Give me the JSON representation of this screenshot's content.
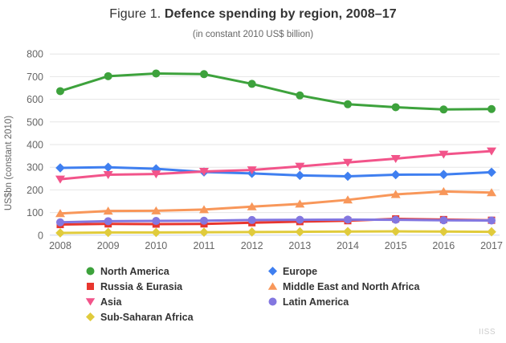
{
  "title": {
    "prefix": "Figure 1.",
    "main": "Defence spending by region, 2008–17"
  },
  "subtitle": "(in constant 2010 US$ billion)",
  "watermark": "IISS",
  "colors": {
    "gridline": "#e6e6e6",
    "axis_line": "#ccd6eb",
    "tick": "#ccd6eb",
    "axis_label": "#666666",
    "title_text": "#333333",
    "legend_text": "#333333"
  },
  "chart_data": {
    "type": "line",
    "title": "Figure 1. Defence spending by region, 2008-17",
    "subtitle": "(in constant 2010 US$ billion)",
    "xlabel": "",
    "ylabel": "US$bn (constant 2010)",
    "ylim": [
      0,
      800
    ],
    "yticks": [
      0,
      100,
      200,
      300,
      400,
      500,
      600,
      700,
      800
    ],
    "grid": "horizontal",
    "legend_position": "bottom",
    "categories": [
      "2008",
      "2009",
      "2010",
      "2011",
      "2012",
      "2013",
      "2014",
      "2015",
      "2016",
      "2017"
    ],
    "series": [
      {
        "name": "North America",
        "color": "#3da23c",
        "marker": "circle",
        "values": [
          636,
          702,
          714,
          711,
          668,
          617,
          578,
          565,
          555,
          557
        ]
      },
      {
        "name": "Europe",
        "color": "#3f7ff0",
        "marker": "diamond",
        "values": [
          297,
          300,
          293,
          279,
          273,
          264,
          260,
          267,
          268,
          278
        ]
      },
      {
        "name": "Asia",
        "color": "#f2548a",
        "marker": "triangle-down",
        "values": [
          247,
          267,
          270,
          281,
          288,
          304,
          321,
          338,
          357,
          371
        ]
      },
      {
        "name": "Middle East and North Africa",
        "color": "#f8975a",
        "marker": "triangle-up",
        "values": [
          96,
          107,
          108,
          113,
          126,
          138,
          156,
          180,
          193,
          188
        ]
      },
      {
        "name": "Russia & Eurasia",
        "color": "#e8362e",
        "marker": "square",
        "values": [
          47,
          50,
          49,
          50,
          55,
          60,
          64,
          72,
          69,
          66
        ]
      },
      {
        "name": "Latin America",
        "color": "#8377e0",
        "marker": "circle",
        "values": [
          57,
          62,
          63,
          64,
          67,
          68,
          69,
          68,
          66,
          65
        ]
      },
      {
        "name": "Sub-Saharan Africa",
        "color": "#e0cb3c",
        "marker": "diamond",
        "values": [
          10,
          12,
          12,
          13,
          14,
          15,
          16,
          17,
          16,
          15
        ]
      }
    ],
    "legend_order": [
      "North America",
      "Europe",
      "Russia & Eurasia",
      "Middle East and North Africa",
      "Asia",
      "Latin America",
      "Sub-Saharan Africa"
    ]
  }
}
